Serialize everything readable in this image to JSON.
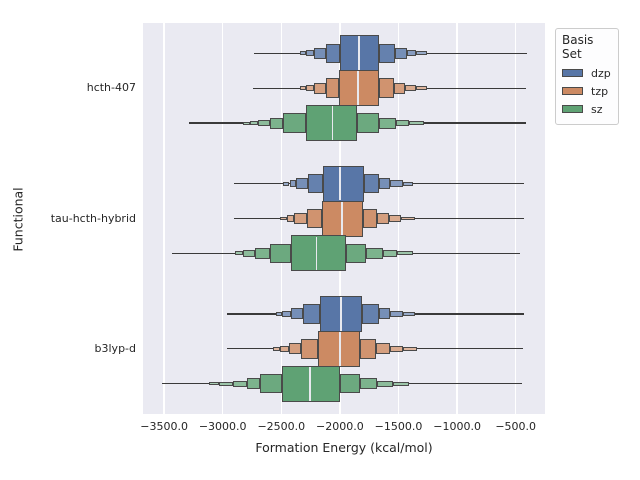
{
  "chart_data": {
    "type": "boxen",
    "orientation": "horizontal",
    "title": "",
    "xlabel": "Formation Energy (kcal/mol)",
    "ylabel": "Functional",
    "xlim": [
      -3680,
      -250
    ],
    "grid": true,
    "xticks": {
      "values": [
        -3500,
        -3000,
        -2500,
        -2000,
        -1500,
        -1000,
        -500
      ],
      "labels": [
        "−3500.0",
        "−3000.0",
        "−2500.0",
        "−2000.0",
        "−1500.0",
        "−1000.0",
        "−500.0"
      ]
    },
    "categories": [
      "hcth-407",
      "tau-hcth-hybrid",
      "b3lyp-d"
    ],
    "legend": {
      "title": "Basis Set",
      "position": "upper-right-outside",
      "entries": [
        {
          "label": "dzp",
          "color": "#5876A7"
        },
        {
          "label": "tzp",
          "color": "#CC8A63"
        },
        {
          "label": "sz",
          "color": "#5FA274"
        }
      ]
    },
    "style": {
      "plot_bg": "#EAEAF2",
      "grid_color": "#FFFFFF",
      "box_edge": "#4A4A4A",
      "whisker_color": "#3A3A3A",
      "median_color": "#E8E9EF",
      "level_heights": [
        1.0,
        0.54,
        0.31,
        0.18,
        0.11,
        0.08
      ],
      "level_lighten": [
        0,
        0.08,
        0.18,
        0.28,
        0.38,
        0.46
      ]
    },
    "groups": [
      {
        "category": "hcth-407",
        "boxens": [
          {
            "basis": "dzp",
            "median": -1835,
            "whiskers": [
              -2735,
              -400
            ],
            "boxes": [
              {
                "x": [
                  -2000,
                  -1665
                ],
                "lv": 0
              },
              {
                "x": [
                  -2120,
                  -2000
                ],
                "lv": 1
              },
              {
                "x": [
                  -1665,
                  -1530
                ],
                "lv": 1
              },
              {
                "x": [
                  -2220,
                  -2120
                ],
                "lv": 2
              },
              {
                "x": [
                  -1530,
                  -1430
                ],
                "lv": 2
              },
              {
                "x": [
                  -2285,
                  -2220
                ],
                "lv": 3
              },
              {
                "x": [
                  -1430,
                  -1350
                ],
                "lv": 3
              },
              {
                "x": [
                  -2340,
                  -2285
                ],
                "lv": 4
              },
              {
                "x": [
                  -1350,
                  -1260
                ],
                "lv": 4
              }
            ]
          },
          {
            "basis": "tzp",
            "median": -1845,
            "whiskers": [
              -2740,
              -410
            ],
            "boxes": [
              {
                "x": [
                  -2010,
                  -1665
                ],
                "lv": 0
              },
              {
                "x": [
                  -2120,
                  -2010
                ],
                "lv": 1
              },
              {
                "x": [
                  -1665,
                  -1540
                ],
                "lv": 1
              },
              {
                "x": [
                  -2225,
                  -2120
                ],
                "lv": 2
              },
              {
                "x": [
                  -1540,
                  -1445
                ],
                "lv": 2
              },
              {
                "x": [
                  -2285,
                  -2225
                ],
                "lv": 3
              },
              {
                "x": [
                  -1445,
                  -1350
                ],
                "lv": 3
              },
              {
                "x": [
                  -2340,
                  -2285
                ],
                "lv": 4
              },
              {
                "x": [
                  -1350,
                  -1255
                ],
                "lv": 4
              }
            ]
          },
          {
            "basis": "sz",
            "median": -2065,
            "whiskers": [
              -3285,
              -410
            ],
            "boxes": [
              {
                "x": [
                  -2290,
                  -1850
                ],
                "lv": 0
              },
              {
                "x": [
                  -2485,
                  -2290
                ],
                "lv": 1
              },
              {
                "x": [
                  -1850,
                  -1665
                ],
                "lv": 1
              },
              {
                "x": [
                  -2595,
                  -2485
                ],
                "lv": 2
              },
              {
                "x": [
                  -1665,
                  -1525
                ],
                "lv": 2
              },
              {
                "x": [
                  -2695,
                  -2595
                ],
                "lv": 3
              },
              {
                "x": [
                  -1525,
                  -1410
                ],
                "lv": 3
              },
              {
                "x": [
                  -2765,
                  -2695
                ],
                "lv": 4
              },
              {
                "x": [
                  -1410,
                  -1280
                ],
                "lv": 4
              },
              {
                "x": [
                  -2825,
                  -2765
                ],
                "lv": 5
              }
            ]
          }
        ]
      },
      {
        "category": "tau-hcth-hybrid",
        "boxens": [
          {
            "basis": "dzp",
            "median": -2000,
            "whiskers": [
              -2900,
              -425
            ],
            "boxes": [
              {
                "x": [
                  -2145,
                  -1795
                ],
                "lv": 0
              },
              {
                "x": [
                  -2270,
                  -2145
                ],
                "lv": 1
              },
              {
                "x": [
                  -1795,
                  -1665
                ],
                "lv": 1
              },
              {
                "x": [
                  -2375,
                  -2270
                ],
                "lv": 2
              },
              {
                "x": [
                  -1665,
                  -1570
                ],
                "lv": 2
              },
              {
                "x": [
                  -2430,
                  -2375
                ],
                "lv": 3
              },
              {
                "x": [
                  -1570,
                  -1460
                ],
                "lv": 3
              },
              {
                "x": [
                  -2485,
                  -2430
                ],
                "lv": 4
              },
              {
                "x": [
                  -1460,
                  -1375
                ],
                "lv": 4
              }
            ]
          },
          {
            "basis": "tzp",
            "median": -1980,
            "whiskers": [
              -2900,
              -425
            ],
            "boxes": [
              {
                "x": [
                  -2155,
                  -1805
                ],
                "lv": 0
              },
              {
                "x": [
                  -2280,
                  -2155
                ],
                "lv": 1
              },
              {
                "x": [
                  -1805,
                  -1685
                ],
                "lv": 1
              },
              {
                "x": [
                  -2390,
                  -2280
                ],
                "lv": 2
              },
              {
                "x": [
                  -1685,
                  -1580
                ],
                "lv": 2
              },
              {
                "x": [
                  -2455,
                  -2390
                ],
                "lv": 3
              },
              {
                "x": [
                  -1580,
                  -1475
                ],
                "lv": 3
              },
              {
                "x": [
                  -2510,
                  -2455
                ],
                "lv": 4
              },
              {
                "x": [
                  -1475,
                  -1360
                ],
                "lv": 4
              }
            ]
          },
          {
            "basis": "sz",
            "median": -2200,
            "whiskers": [
              -3430,
              -465
            ],
            "boxes": [
              {
                "x": [
                  -2420,
                  -1950
                ],
                "lv": 0
              },
              {
                "x": [
                  -2600,
                  -2420
                ],
                "lv": 1
              },
              {
                "x": [
                  -1950,
                  -1780
                ],
                "lv": 1
              },
              {
                "x": [
                  -2725,
                  -2600
                ],
                "lv": 2
              },
              {
                "x": [
                  -1780,
                  -1635
                ],
                "lv": 2
              },
              {
                "x": [
                  -2825,
                  -2725
                ],
                "lv": 3
              },
              {
                "x": [
                  -1635,
                  -1510
                ],
                "lv": 3
              },
              {
                "x": [
                  -2895,
                  -2825
                ],
                "lv": 4
              },
              {
                "x": [
                  -1510,
                  -1375
                ],
                "lv": 4
              }
            ]
          }
        ]
      },
      {
        "category": "b3lyp-d",
        "boxens": [
          {
            "basis": "dzp",
            "median": -1990,
            "whiskers": [
              -2960,
              -430
            ],
            "boxes": [
              {
                "x": [
                  -2170,
                  -1815
                ],
                "lv": 0
              },
              {
                "x": [
                  -2315,
                  -2170
                ],
                "lv": 1
              },
              {
                "x": [
                  -1815,
                  -1665
                ],
                "lv": 1
              },
              {
                "x": [
                  -2420,
                  -2315
                ],
                "lv": 2
              },
              {
                "x": [
                  -1665,
                  -1570
                ],
                "lv": 2
              },
              {
                "x": [
                  -2490,
                  -2420
                ],
                "lv": 3
              },
              {
                "x": [
                  -1570,
                  -1460
                ],
                "lv": 3
              },
              {
                "x": [
                  -2545,
                  -2490
                ],
                "lv": 4
              },
              {
                "x": [
                  -1460,
                  -1360
                ],
                "lv": 4
              }
            ]
          },
          {
            "basis": "tzp",
            "median": -2000,
            "whiskers": [
              -2960,
              -440
            ],
            "boxes": [
              {
                "x": [
                  -2190,
                  -1830
                ],
                "lv": 0
              },
              {
                "x": [
                  -2330,
                  -2190
                ],
                "lv": 1
              },
              {
                "x": [
                  -1830,
                  -1690
                ],
                "lv": 1
              },
              {
                "x": [
                  -2435,
                  -2330
                ],
                "lv": 2
              },
              {
                "x": [
                  -1690,
                  -1570
                ],
                "lv": 2
              },
              {
                "x": [
                  -2510,
                  -2435
                ],
                "lv": 3
              },
              {
                "x": [
                  -1570,
                  -1460
                ],
                "lv": 3
              },
              {
                "x": [
                  -2575,
                  -2510
                ],
                "lv": 4
              },
              {
                "x": [
                  -1460,
                  -1345
                ],
                "lv": 4
              }
            ]
          },
          {
            "basis": "sz",
            "median": -2255,
            "whiskers": [
              -3520,
              -445
            ],
            "boxes": [
              {
                "x": [
                  -2490,
                  -2000
                ],
                "lv": 0
              },
              {
                "x": [
                  -2680,
                  -2490
                ],
                "lv": 1
              },
              {
                "x": [
                  -2000,
                  -1830
                ],
                "lv": 1
              },
              {
                "x": [
                  -2795,
                  -2680
                ],
                "lv": 2
              },
              {
                "x": [
                  -1830,
                  -1685
                ],
                "lv": 2
              },
              {
                "x": [
                  -2910,
                  -2795
                ],
                "lv": 3
              },
              {
                "x": [
                  -1685,
                  -1545
                ],
                "lv": 3
              },
              {
                "x": [
                  -3035,
                  -2910
                ],
                "lv": 4
              },
              {
                "x": [
                  -1545,
                  -1410
                ],
                "lv": 4
              },
              {
                "x": [
                  -3115,
                  -3035
                ],
                "lv": 5
              }
            ]
          }
        ]
      }
    ]
  }
}
